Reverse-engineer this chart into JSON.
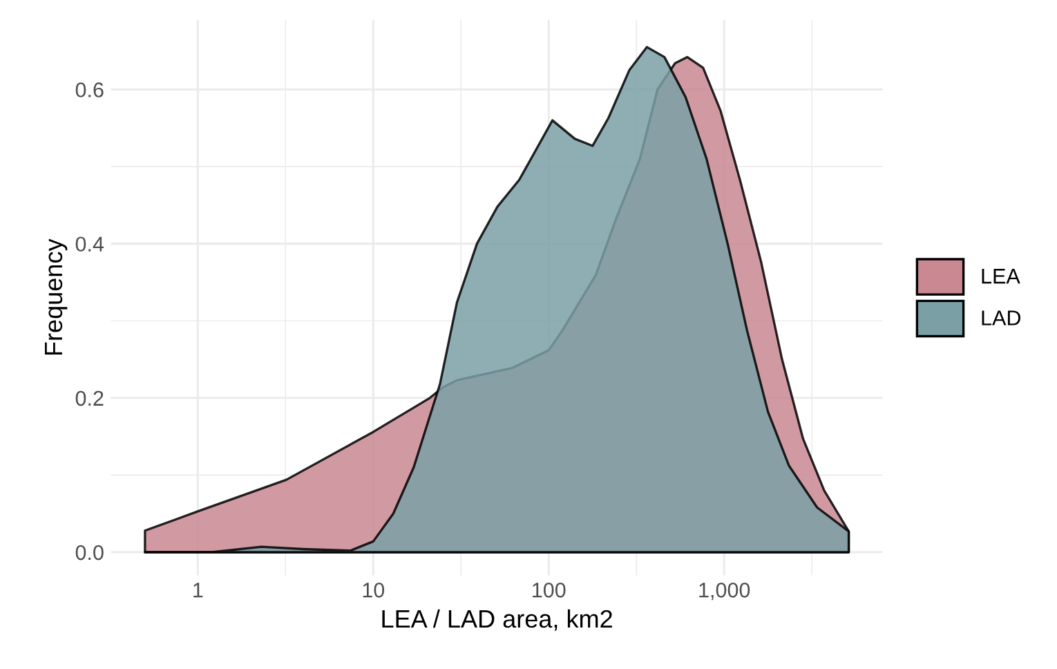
{
  "chart_data": {
    "type": "area",
    "xlabel": "LEA / LAD area, km2",
    "ylabel": "Frequency",
    "log": "x",
    "xlim": [
      0.32,
      8000
    ],
    "xticks": [
      {
        "value": 1,
        "label": "1"
      },
      {
        "value": 10,
        "label": "10"
      },
      {
        "value": 100,
        "label": "100"
      },
      {
        "value": 1000,
        "label": "1,000"
      }
    ],
    "ylim": [
      -0.03,
      0.69
    ],
    "yticks": [
      {
        "value": 0,
        "label": "0.0"
      },
      {
        "value": 0.2,
        "label": "0.2"
      },
      {
        "value": 0.4,
        "label": "0.4"
      },
      {
        "value": 0.6,
        "label": "0.6"
      }
    ],
    "grid": true,
    "legend": "right",
    "series": [
      {
        "name": "LEA",
        "color": "#c98892",
        "x": [
          0.5,
          1,
          3.2,
          10,
          21,
          25,
          30,
          62,
          100,
          120,
          186,
          240,
          331,
          417,
          525,
          617,
          759,
          955,
          1230,
          1622,
          2138,
          2818,
          3715,
          5130
        ],
        "values": [
          0.028,
          0.053,
          0.094,
          0.156,
          0.2,
          0.214,
          0.223,
          0.239,
          0.262,
          0.288,
          0.36,
          0.43,
          0.51,
          0.6,
          0.634,
          0.642,
          0.628,
          0.572,
          0.483,
          0.377,
          0.25,
          0.147,
          0.08,
          0.027
        ]
      },
      {
        "name": "LAD",
        "color": "#7aa0a6",
        "x": [
          0.5,
          1.2,
          2.3,
          4,
          7.4,
          10,
          13,
          17,
          24,
          30,
          39,
          51,
          68,
          105,
          141,
          178,
          219,
          288,
          363,
          457,
          603,
          794,
          1047,
          1349,
          1778,
          2344,
          3388,
          5130
        ],
        "values": [
          0,
          0,
          0.007,
          0.004,
          0.002,
          0.014,
          0.05,
          0.11,
          0.218,
          0.324,
          0.4,
          0.448,
          0.483,
          0.56,
          0.536,
          0.527,
          0.563,
          0.625,
          0.655,
          0.642,
          0.59,
          0.51,
          0.4,
          0.288,
          0.182,
          0.112,
          0.058,
          0.027
        ]
      }
    ]
  }
}
